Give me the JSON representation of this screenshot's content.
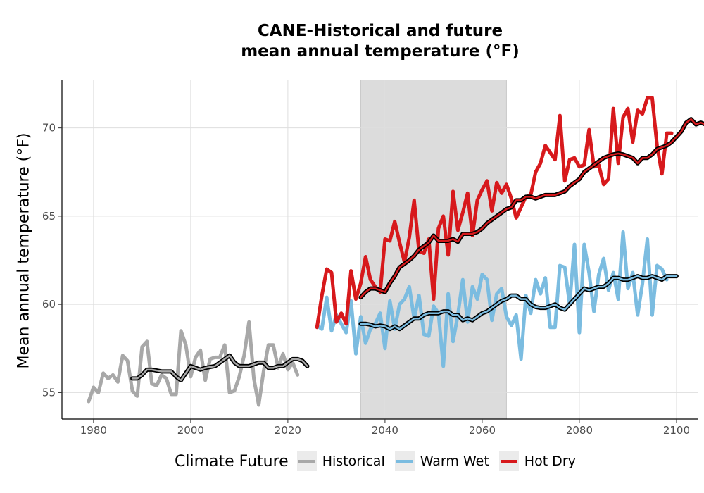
{
  "chart_data": {
    "type": "line",
    "title": "CANE-Historical and future",
    "subtitle": "mean annual temperature (°F)",
    "xlabel": "",
    "ylabel": "Mean annual temperature (°F)",
    "xlim": [
      1973.5,
      2104.5
    ],
    "ylim": [
      53.5,
      72.7
    ],
    "x_ticks": [
      1980,
      2000,
      2020,
      2040,
      2060,
      2080,
      2100
    ],
    "y_ticks": [
      55,
      60,
      65,
      70
    ],
    "grid": true,
    "shaded_period": [
      2035,
      2065
    ],
    "legend_title": "Climate Future",
    "legend_position": "bottom",
    "legend": [
      "Historical",
      "Warm Wet",
      "Hot Dry"
    ],
    "series": [
      {
        "name": "Historical",
        "color": "#a8a8a8",
        "x_start": 1979,
        "values": [
          54.5,
          55.3,
          55.0,
          56.1,
          55.8,
          56.0,
          55.6,
          57.1,
          56.8,
          55.1,
          54.8,
          57.6,
          57.9,
          55.5,
          55.4,
          56.0,
          55.8,
          54.9,
          54.9,
          58.5,
          57.7,
          55.9,
          57.0,
          57.4,
          55.7,
          56.9,
          57.0,
          57.0,
          57.7,
          55.0,
          55.1,
          55.9,
          57.1,
          59.0,
          55.8,
          54.3,
          56.2,
          57.7,
          57.7,
          56.4,
          57.2,
          56.3,
          56.7,
          56.0
        ],
        "smooth_x_start": 1988,
        "smooth": [
          55.8,
          55.8,
          56.0,
          56.3,
          56.3,
          56.25,
          56.2,
          56.2,
          56.2,
          55.9,
          55.7,
          56.1,
          56.5,
          56.4,
          56.3,
          56.4,
          56.45,
          56.5,
          56.7,
          56.9,
          57.1,
          56.7,
          56.5,
          56.5,
          56.5,
          56.6,
          56.7,
          56.7,
          56.4,
          56.4,
          56.5,
          56.5,
          56.7,
          56.9,
          56.9,
          56.8,
          56.5
        ]
      },
      {
        "name": "Warm Wet",
        "color": "#7bbce0",
        "x_start": 2026,
        "values": [
          58.8,
          58.6,
          60.4,
          58.5,
          59.4,
          58.9,
          58.4,
          60.2,
          57.2,
          59.3,
          57.8,
          58.6,
          58.9,
          59.5,
          57.5,
          60.2,
          58.6,
          60.0,
          60.3,
          61.0,
          59.2,
          60.5,
          58.3,
          58.2,
          59.9,
          59.5,
          56.5,
          60.6,
          57.9,
          59.4,
          61.4,
          59.0,
          61.0,
          60.3,
          61.7,
          61.4,
          59.1,
          60.6,
          60.9,
          59.3,
          58.8,
          59.4,
          56.9,
          60.5,
          59.5,
          61.4,
          60.6,
          61.5,
          58.7,
          58.7,
          62.2,
          62.1,
          60.0,
          63.4,
          58.4,
          63.4,
          61.8,
          59.6,
          61.7,
          62.6,
          60.8,
          61.8,
          60.3,
          64.1,
          60.9,
          61.8,
          59.4,
          61.2,
          63.7,
          59.4,
          62.2,
          62.0,
          61.4
        ],
        "smooth_x_start": 2035,
        "smooth": [
          58.9,
          58.9,
          58.85,
          58.75,
          58.8,
          58.75,
          58.6,
          58.75,
          58.6,
          58.8,
          59.0,
          59.2,
          59.2,
          59.4,
          59.5,
          59.5,
          59.5,
          59.6,
          59.6,
          59.4,
          59.4,
          59.1,
          59.2,
          59.1,
          59.3,
          59.5,
          59.6,
          59.8,
          60.0,
          60.2,
          60.3,
          60.5,
          60.5,
          60.3,
          60.3,
          60.0,
          59.85,
          59.8,
          59.8,
          59.9,
          60.0,
          59.8,
          59.7,
          60.0,
          60.3,
          60.6,
          60.9,
          60.8,
          60.9,
          61.0,
          61.0,
          61.2,
          61.5,
          61.5,
          61.4,
          61.4,
          61.5,
          61.6,
          61.5,
          61.5,
          61.6,
          61.5,
          61.4,
          61.6,
          61.6,
          61.6
        ]
      },
      {
        "name": "Hot Dry",
        "color": "#d7191c",
        "x_start": 2026,
        "values": [
          58.7,
          60.5,
          62.0,
          61.8,
          59.0,
          59.5,
          58.9,
          61.9,
          60.3,
          61.2,
          62.7,
          61.4,
          61.0,
          60.7,
          63.7,
          63.6,
          64.7,
          63.5,
          62.4,
          63.8,
          65.9,
          63.0,
          62.9,
          63.7,
          60.3,
          64.3,
          65.0,
          62.8,
          66.4,
          64.2,
          65.2,
          66.3,
          63.9,
          65.9,
          66.5,
          67.0,
          65.3,
          66.9,
          66.3,
          66.8,
          66.0,
          64.9,
          65.5,
          66.1,
          66.2,
          67.5,
          68.0,
          69.0,
          68.6,
          68.2,
          70.7,
          67.0,
          68.2,
          68.3,
          67.8,
          67.9,
          69.9,
          67.8,
          67.9,
          66.8,
          67.1,
          71.1,
          68.0,
          70.6,
          71.1,
          69.2,
          71.0,
          70.8,
          71.7,
          71.7,
          69.0,
          67.4,
          69.7,
          69.7
        ],
        "smooth_x_start": 2035,
        "smooth": [
          60.4,
          60.7,
          60.9,
          60.9,
          60.8,
          60.7,
          61.2,
          61.6,
          62.1,
          62.3,
          62.5,
          62.75,
          63.1,
          63.3,
          63.5,
          63.9,
          63.6,
          63.6,
          63.6,
          63.7,
          63.55,
          64.0,
          64.0,
          64.0,
          64.1,
          64.3,
          64.6,
          64.8,
          65.0,
          65.2,
          65.4,
          65.5,
          65.9,
          65.9,
          66.1,
          66.1,
          66.0,
          66.1,
          66.2,
          66.2,
          66.2,
          66.3,
          66.4,
          66.7,
          66.9,
          67.1,
          67.5,
          67.7,
          67.9,
          68.1,
          68.3,
          68.4,
          68.5,
          68.55,
          68.5,
          68.4,
          68.3,
          68.0,
          68.3,
          68.3,
          68.5,
          68.8,
          68.9,
          69.0,
          69.2,
          69.5,
          69.8,
          70.3,
          70.5,
          70.2,
          70.3,
          70.2
        ]
      }
    ]
  }
}
